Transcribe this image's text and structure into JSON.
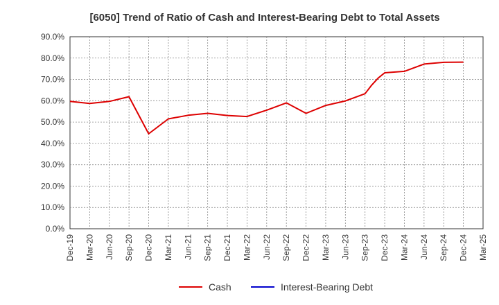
{
  "chart_data": {
    "type": "line",
    "title": "[6050]  Trend of Ratio of Cash and Interest-Bearing Debt to Total Assets",
    "xlabel": "",
    "ylabel": "",
    "x_tick_labels": [
      "Dec-19",
      "Mar-20",
      "Jun-20",
      "Sep-20",
      "Dec-20",
      "Mar-21",
      "Jun-21",
      "Sep-21",
      "Dec-21",
      "Mar-22",
      "Jun-22",
      "Sep-22",
      "Dec-22",
      "Mar-23",
      "Jun-23",
      "Sep-23",
      "Dec-23",
      "Mar-24",
      "Jun-24",
      "Sep-24",
      "Dec-24",
      "Mar-25"
    ],
    "y_tick_labels": [
      "0.0%",
      "10.0%",
      "20.0%",
      "30.0%",
      "40.0%",
      "50.0%",
      "60.0%",
      "70.0%",
      "80.0%",
      "90.0%"
    ],
    "ylim": [
      0,
      90
    ],
    "y_unit": "%",
    "grid": true,
    "legend_position": "bottom",
    "series": [
      {
        "name": "Cash",
        "color": "#dd0000",
        "x": [
          "Dec-19",
          "Mar-20",
          "Jun-20",
          "Sep-20",
          "Dec-20",
          "Mar-21",
          "Jun-21",
          "Sep-21",
          "Dec-21",
          "Mar-22",
          "Jun-22",
          "Sep-22",
          "Dec-22",
          "Mar-23",
          "Jun-23",
          "Sep-23",
          "Oct-23",
          "Nov-23",
          "Dec-23",
          "Mar-24",
          "Jun-24",
          "Sep-24",
          "Dec-24"
        ],
        "values": [
          59.7,
          58.7,
          59.7,
          61.9,
          44.5,
          51.5,
          53.2,
          54.1,
          53.1,
          52.6,
          55.6,
          59.0,
          54.1,
          57.8,
          59.9,
          63.3,
          67.3,
          70.6,
          73.1,
          73.8,
          77.2,
          78.0,
          78.1
        ]
      },
      {
        "name": "Interest-Bearing Debt",
        "color": "#0000cc",
        "x": [],
        "values": []
      }
    ]
  }
}
